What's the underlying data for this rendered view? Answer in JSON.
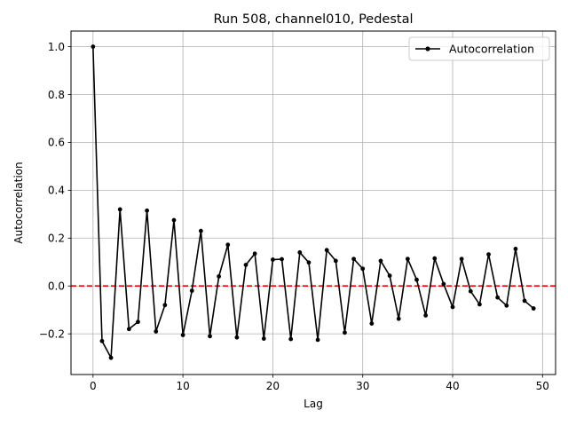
{
  "chart_data": {
    "type": "line",
    "title": "Run 508, channel010, Pedestal",
    "xlabel": "Lag",
    "ylabel": "Autocorrelation",
    "xlim": [
      -2.45,
      51.45
    ],
    "ylim": [
      -0.37,
      1.065
    ],
    "x_ticks": [
      0,
      10,
      20,
      30,
      40,
      50
    ],
    "y_ticks": [
      -0.2,
      0.0,
      0.2,
      0.4,
      0.6,
      0.8,
      1.0
    ],
    "y_tick_labels": [
      "−0.2",
      "0.0",
      "0.2",
      "0.4",
      "0.6",
      "0.8",
      "1.0"
    ],
    "grid": true,
    "legend": {
      "position": "top-right",
      "entries": [
        "Autocorrelation"
      ]
    },
    "series": [
      {
        "name": "Autocorrelation",
        "color": "#000000",
        "marker": "circle",
        "x": [
          0,
          1,
          2,
          3,
          4,
          5,
          6,
          7,
          8,
          9,
          10,
          11,
          12,
          13,
          14,
          15,
          16,
          17,
          18,
          19,
          20,
          21,
          22,
          23,
          24,
          25,
          26,
          27,
          28,
          29,
          30,
          31,
          32,
          33,
          34,
          35,
          36,
          37,
          38,
          39,
          40,
          41,
          42,
          43,
          44,
          45,
          46,
          47,
          48,
          49
        ],
        "values": [
          1.0,
          -0.23,
          -0.3,
          0.32,
          -0.18,
          -0.15,
          0.315,
          -0.19,
          -0.08,
          0.275,
          -0.205,
          -0.02,
          0.23,
          -0.21,
          0.04,
          0.172,
          -0.215,
          0.088,
          0.135,
          -0.22,
          0.11,
          0.112,
          -0.222,
          0.14,
          0.098,
          -0.225,
          0.15,
          0.105,
          -0.195,
          0.113,
          0.072,
          -0.157,
          0.105,
          0.043,
          -0.137,
          0.113,
          0.026,
          -0.123,
          0.115,
          0.008,
          -0.088,
          0.113,
          -0.022,
          -0.077,
          0.132,
          -0.048,
          -0.082,
          0.155,
          -0.062,
          -0.094
        ]
      }
    ],
    "reference_line": {
      "y": 0.0,
      "color": "#ff0000",
      "style": "dashed"
    }
  }
}
